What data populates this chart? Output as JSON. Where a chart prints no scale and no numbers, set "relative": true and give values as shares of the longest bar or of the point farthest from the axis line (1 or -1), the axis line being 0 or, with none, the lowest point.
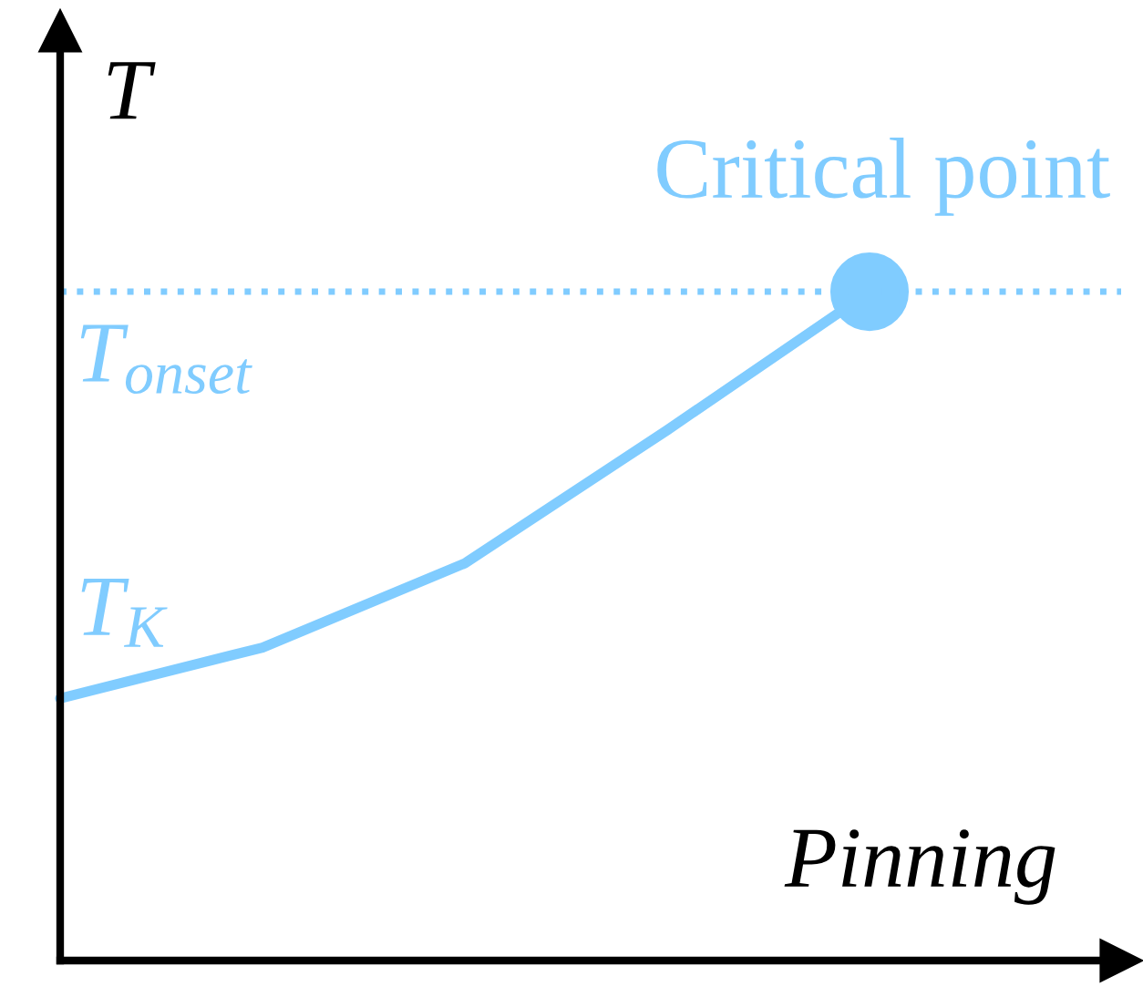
{
  "chart_data": {
    "type": "line",
    "relative": true,
    "xlabel": "Pinning",
    "ylabel": "T",
    "categories": [
      null,
      null,
      null,
      null,
      null
    ],
    "series": [
      {
        "name": "Critical point",
        "color": "#80ccff",
        "values": [
          0.392,
          0.468,
          0.594,
          0.793,
          1
        ]
      }
    ],
    "ref_lines": [
      {
        "axis": "y",
        "value": 1,
        "label": "T$_{onset}$",
        "color": "#80ccff",
        "line_style": "dotted"
      }
    ],
    "annotations": [
      "T$_{K}$"
    ],
    "grid": false,
    "legend": false
  }
}
